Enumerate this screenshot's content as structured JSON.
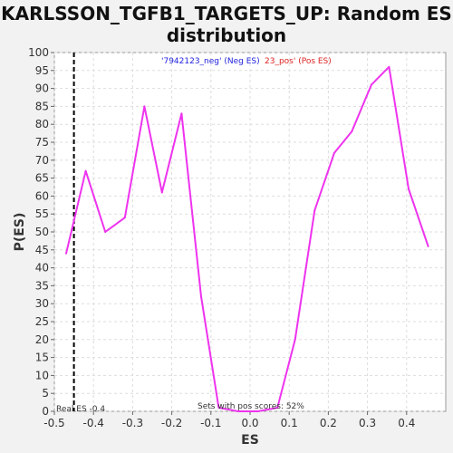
{
  "chart_data": {
    "type": "line",
    "title_line1": "KARLSSON_TGFB1_TARGETS_UP: Random ES",
    "title_line2": "distribution",
    "xlabel": "ES",
    "ylabel": "P(ES)",
    "xlim": [
      -0.5,
      0.5
    ],
    "ylim": [
      0,
      100
    ],
    "xticks": [
      -0.5,
      -0.4,
      -0.3,
      -0.2,
      -0.1,
      0.0,
      0.1,
      0.2,
      0.3,
      0.4
    ],
    "xtick_labels": [
      "-0.5",
      "-0.4",
      "-0.3",
      "-0.2",
      "-0.1",
      "0.0",
      "0.1",
      "0.2",
      "0.3",
      "0.4"
    ],
    "yticks": [
      0,
      5,
      10,
      15,
      20,
      25,
      30,
      35,
      40,
      45,
      50,
      55,
      60,
      65,
      70,
      75,
      80,
      85,
      90,
      95,
      100
    ],
    "grid": true,
    "series": [
      {
        "color": "#ee33ee",
        "x": [
          -0.47,
          -0.42,
          -0.37,
          -0.32,
          -0.27,
          -0.225,
          -0.175,
          -0.125,
          -0.08,
          -0.03,
          0.02,
          0.07,
          0.115,
          0.165,
          0.215,
          0.26,
          0.31,
          0.355,
          0.405,
          0.455
        ],
        "y": [
          44,
          67,
          50,
          54,
          85,
          61,
          83,
          32,
          1,
          0,
          0,
          1,
          20,
          56,
          72,
          78,
          91,
          96,
          62,
          46
        ]
      }
    ],
    "real_es": -0.45,
    "real_es_color": "#000000",
    "annotations": {
      "neg_label": "'7942123_neg' (Neg ES)",
      "neg_color": "#2222dd",
      "pos_label": "23_pos' (Pos ES)",
      "pos_color": "#dd2222",
      "real_es_label": "Real ES -0.4",
      "pos_scores_label": "Sets with pos scores: 52%"
    }
  }
}
